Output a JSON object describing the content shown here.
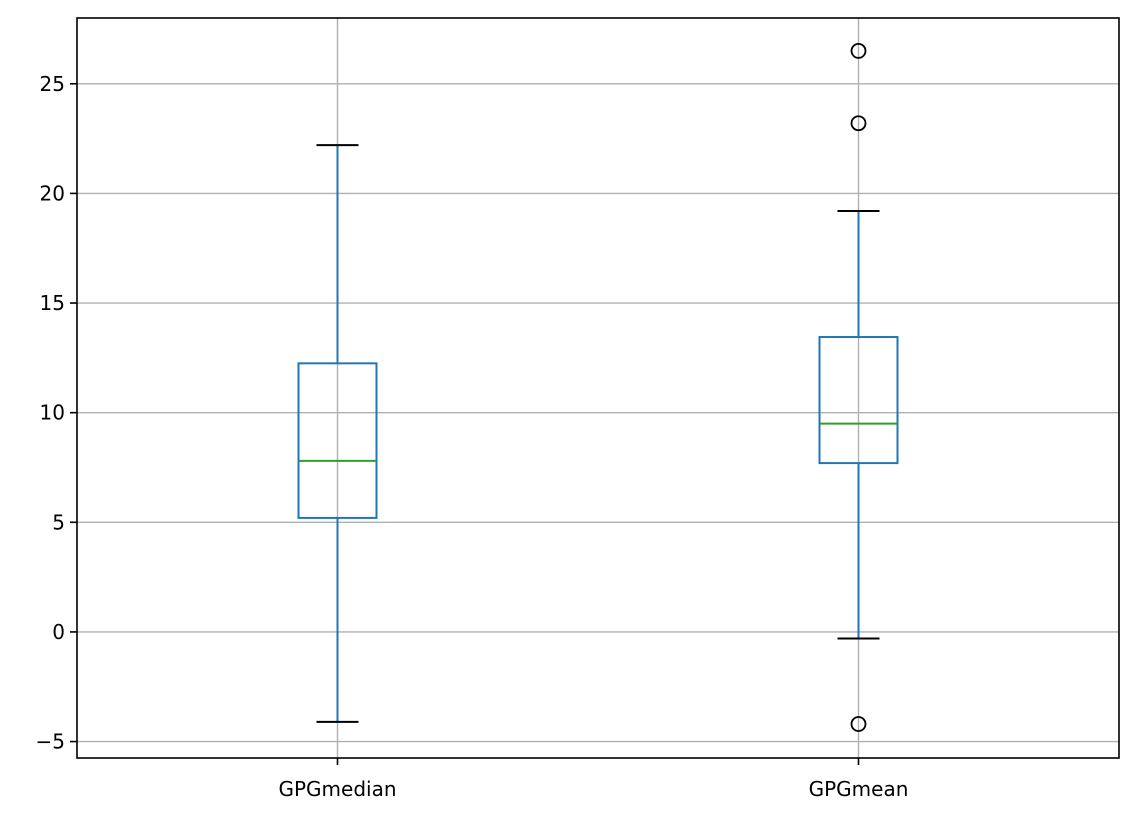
{
  "chart_data": {
    "type": "box",
    "title": "",
    "xlabel": "",
    "ylabel": "",
    "ylim": [
      -5.75,
      28.0
    ],
    "yticks": [
      -5,
      0,
      5,
      10,
      15,
      20,
      25
    ],
    "ytick_labels": [
      "−5",
      "0",
      "5",
      "10",
      "15",
      "20",
      "25"
    ],
    "grid": true,
    "categories": [
      "GPGmedian",
      "GPGmean"
    ],
    "boxes": [
      {
        "label": "GPGmedian",
        "whisker_low": -4.1,
        "q1": 5.2,
        "median": 7.8,
        "q3": 12.25,
        "whisker_high": 22.2,
        "outliers": []
      },
      {
        "label": "GPGmean",
        "whisker_low": -0.3,
        "q1": 7.7,
        "median": 9.5,
        "q3": 13.45,
        "whisker_high": 19.2,
        "outliers": [
          -4.2,
          23.2,
          26.5
        ]
      }
    ],
    "colors": {
      "box": "#1f77b4",
      "median": "#2ca02c",
      "whisker_cap": "#000000",
      "outlier": "#000000",
      "grid": "#b0b0b0",
      "axes": "#000000"
    }
  }
}
